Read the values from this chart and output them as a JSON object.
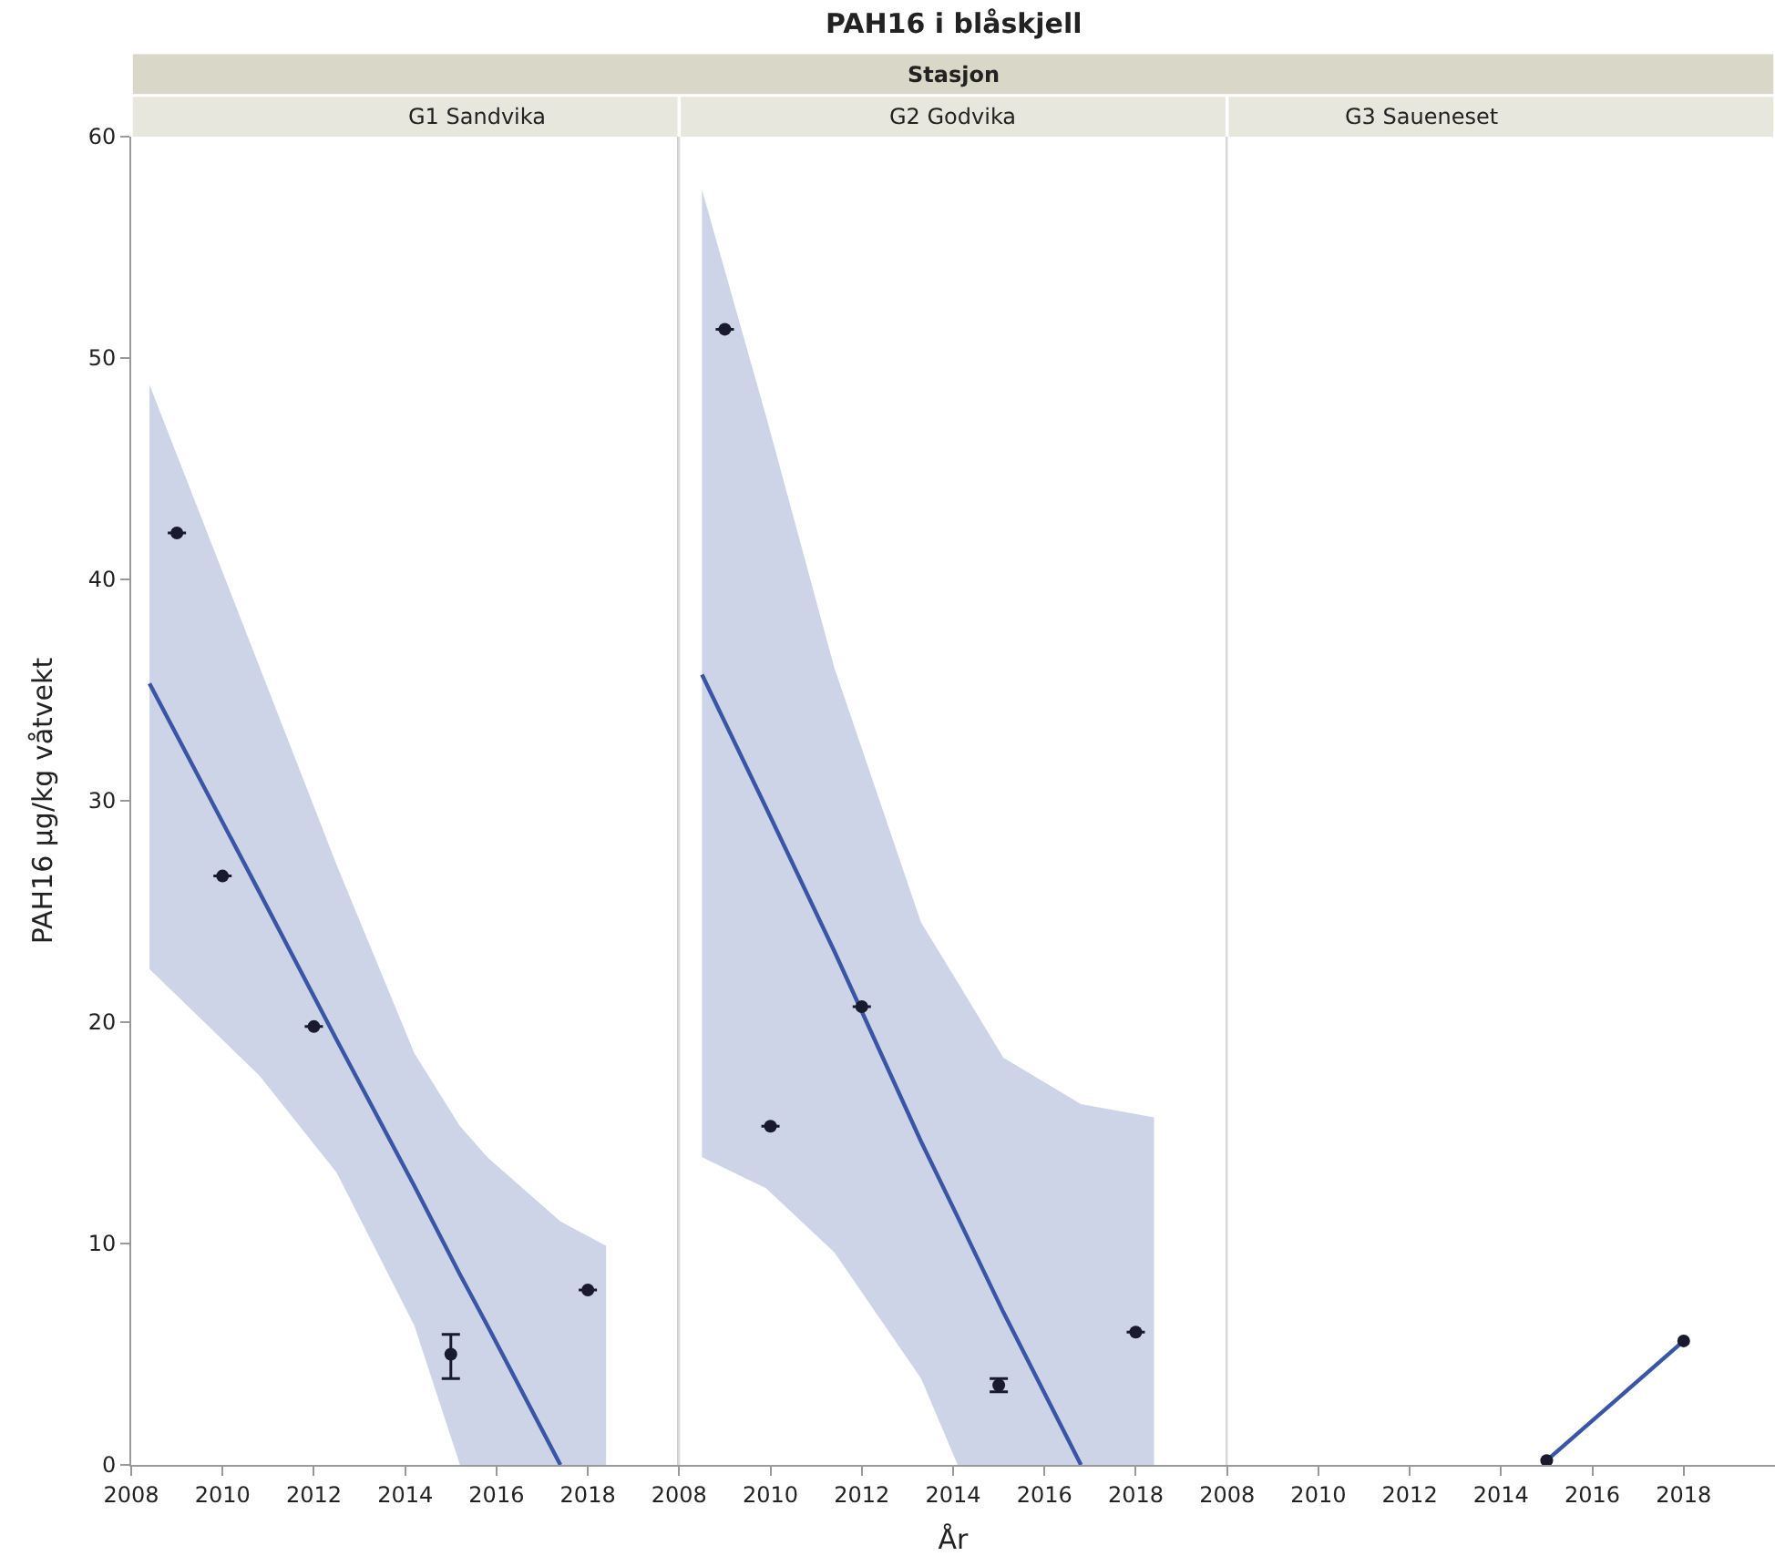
{
  "chart_data": [
    {
      "type": "scatter",
      "title": "G1 Sandvika",
      "ylabel": "PAH16 µg/kg våtvekt",
      "annotations": [
        "PAH16 i blåskjell",
        "Stasjon"
      ],
      "xlim": [
        2008,
        2020
      ],
      "xticks": [
        2008,
        2010,
        2012,
        2014,
        2016,
        2018
      ],
      "ylim": [
        0,
        60
      ],
      "yticks": [
        0,
        10,
        20,
        30,
        40,
        50,
        60
      ],
      "marker": "circle",
      "series": [
        {
          "type": "line",
          "marker": "none",
          "color": "#3a55a4",
          "x": [
            2008.4,
            2010.8,
            2012.5,
            2014.2,
            2015.2,
            2015.8,
            2017.4,
            2018.4
          ],
          "values": [
            35.3,
            25.9,
            19.2,
            12.6,
            8.6,
            6.3,
            0,
            null
          ],
          "upper": [
            48.8,
            36.1,
            27.1,
            18.6,
            15.3,
            13.9,
            11.0,
            9.9
          ],
          "lower": [
            22.4,
            17.6,
            13.2,
            6.3,
            0,
            0,
            0,
            0
          ]
        },
        {
          "color": "#1a1a2e",
          "x": [
            2009,
            2010,
            2012,
            2015,
            2018
          ],
          "values": [
            42.1,
            26.6,
            19.8,
            5.0,
            7.9
          ],
          "errors": [
            null,
            null,
            null,
            [
              3.9,
              5.9
            ],
            null
          ]
        }
      ]
    },
    {
      "type": "scatter",
      "title": "G2 Godvika",
      "xlabel": "År",
      "tick_labels": "x",
      "xlim": [
        2008,
        2020
      ],
      "xticks": [
        2008,
        2010,
        2012,
        2014,
        2016,
        2018
      ],
      "ylim": [
        0,
        60
      ],
      "marker": "circle",
      "series": [
        {
          "type": "line",
          "marker": "none",
          "color": "#3a55a4",
          "x": [
            2008.5,
            2009.9,
            2011.4,
            2013.3,
            2014.1,
            2015.1,
            2016.8,
            2018.4
          ],
          "values": [
            35.7,
            29.7,
            23.2,
            14.6,
            11.2,
            6.9,
            0,
            null
          ],
          "upper": [
            57.6,
            47.4,
            36.0,
            24.5,
            21.8,
            18.4,
            16.3,
            15.7
          ],
          "lower": [
            13.9,
            12.5,
            9.6,
            3.9,
            0,
            0,
            0,
            0
          ]
        },
        {
          "color": "#1a1a2e",
          "x": [
            2009,
            2010,
            2012,
            2015,
            2018
          ],
          "values": [
            51.3,
            15.3,
            20.7,
            3.6,
            6.0
          ],
          "errors": [
            null,
            null,
            null,
            [
              3.3,
              3.9
            ],
            null
          ]
        }
      ]
    },
    {
      "type": "scatter",
      "title": "G3 Saueneset",
      "tick_labels": "x",
      "xlim": [
        2008,
        2020
      ],
      "xticks": [
        2008,
        2010,
        2012,
        2014,
        2016,
        2018
      ],
      "ylim": [
        0,
        60
      ],
      "marker": "circle",
      "series": [
        {
          "type": "line",
          "marker": "none",
          "color": "#3a55a4",
          "x": [
            2015,
            2018
          ],
          "values": [
            0.2,
            5.6
          ]
        },
        {
          "color": "#1a1a2e",
          "x": [
            2015,
            2018
          ],
          "values": [
            0.2,
            5.6
          ]
        }
      ]
    }
  ]
}
